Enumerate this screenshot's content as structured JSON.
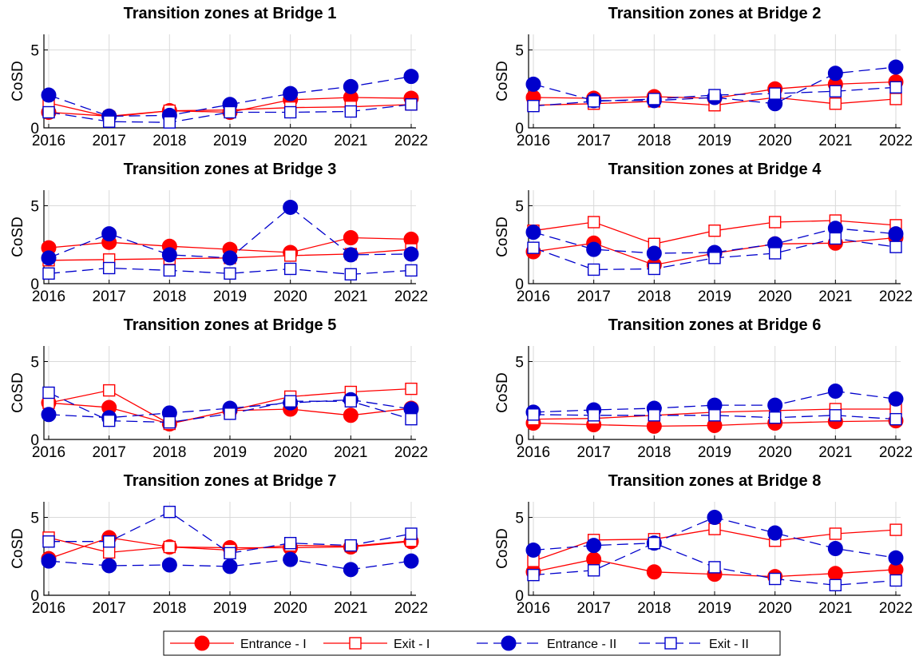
{
  "series_styles": [
    {
      "name": "Entrance - I",
      "color": "#ff0000",
      "marker": "circle",
      "dashed": false
    },
    {
      "name": "Exit - I",
      "color": "#ff0000",
      "marker": "square",
      "dashed": false
    },
    {
      "name": "Entrance - II",
      "color": "#0000cc",
      "marker": "circle",
      "dashed": true
    },
    {
      "name": "Exit - II",
      "color": "#0000cc",
      "marker": "square",
      "dashed": true
    }
  ],
  "chart_data": [
    {
      "type": "line",
      "title": "Transition zones at Bridge 1",
      "ylabel": "CoSD",
      "x": [
        "2016",
        "2017",
        "2018",
        "2019",
        "2020",
        "2021",
        "2022"
      ],
      "ylim": [
        0,
        6
      ],
      "yticks": [
        0,
        5
      ],
      "series": [
        {
          "name": "Entrance - I",
          "values": [
            1.0,
            0.75,
            1.1,
            1.0,
            1.8,
            1.95,
            1.9
          ]
        },
        {
          "name": "Exit - I",
          "values": [
            1.6,
            0.7,
            1.1,
            1.15,
            1.3,
            1.35,
            1.5
          ]
        },
        {
          "name": "Entrance - II",
          "values": [
            2.1,
            0.75,
            0.8,
            1.5,
            2.2,
            2.65,
            3.3
          ]
        },
        {
          "name": "Exit - II",
          "values": [
            1.0,
            0.4,
            0.35,
            1.0,
            1.0,
            1.05,
            1.5
          ]
        }
      ]
    },
    {
      "type": "line",
      "title": "Transition zones at Bridge 2",
      "ylabel": "CoSD",
      "x": [
        "2016",
        "2017",
        "2018",
        "2019",
        "2020",
        "2021",
        "2022"
      ],
      "ylim": [
        0,
        6
      ],
      "yticks": [
        0,
        5
      ],
      "series": [
        {
          "name": "Entrance - I",
          "values": [
            1.95,
            1.9,
            2.0,
            1.9,
            2.5,
            2.8,
            2.95
          ]
        },
        {
          "name": "Exit - I",
          "values": [
            1.45,
            1.55,
            1.7,
            1.45,
            1.95,
            1.55,
            1.85
          ]
        },
        {
          "name": "Entrance - II",
          "values": [
            2.8,
            1.75,
            1.75,
            1.95,
            1.55,
            3.5,
            3.9
          ]
        },
        {
          "name": "Exit - II",
          "values": [
            1.4,
            1.7,
            1.85,
            2.1,
            2.2,
            2.35,
            2.6
          ]
        }
      ]
    },
    {
      "type": "line",
      "title": "Transition zones at Bridge 3",
      "ylabel": "CoSD",
      "x": [
        "2016",
        "2017",
        "2018",
        "2019",
        "2020",
        "2021",
        "2022"
      ],
      "ylim": [
        0,
        6
      ],
      "yticks": [
        0,
        5
      ],
      "series": [
        {
          "name": "Entrance - I",
          "values": [
            2.3,
            2.65,
            2.4,
            2.2,
            2.0,
            2.95,
            2.85
          ]
        },
        {
          "name": "Exit - I",
          "values": [
            1.5,
            1.55,
            1.6,
            1.65,
            1.8,
            1.9,
            2.2
          ]
        },
        {
          "name": "Entrance - II",
          "values": [
            1.65,
            3.2,
            1.85,
            1.65,
            4.9,
            1.85,
            1.9
          ]
        },
        {
          "name": "Exit - II",
          "values": [
            0.65,
            1.0,
            0.85,
            0.65,
            0.95,
            0.6,
            0.85
          ]
        }
      ]
    },
    {
      "type": "line",
      "title": "Transition zones at Bridge 4",
      "ylabel": "CoSD",
      "x": [
        "2016",
        "2017",
        "2018",
        "2019",
        "2020",
        "2021",
        "2022"
      ],
      "ylim": [
        0,
        6
      ],
      "yticks": [
        0,
        5
      ],
      "series": [
        {
          "name": "Entrance - I",
          "values": [
            2.05,
            2.6,
            1.2,
            1.95,
            2.55,
            2.6,
            2.95
          ]
        },
        {
          "name": "Exit - I",
          "values": [
            3.4,
            3.95,
            2.55,
            3.4,
            3.95,
            4.05,
            3.75
          ]
        },
        {
          "name": "Entrance - II",
          "values": [
            3.3,
            2.2,
            1.95,
            2.0,
            2.55,
            3.55,
            3.2
          ]
        },
        {
          "name": "Exit - II",
          "values": [
            2.3,
            0.9,
            0.95,
            1.65,
            1.95,
            2.9,
            2.35
          ]
        }
      ]
    },
    {
      "type": "line",
      "title": "Transition zones at Bridge 5",
      "ylabel": "CoSD",
      "x": [
        "2016",
        "2017",
        "2018",
        "2019",
        "2020",
        "2021",
        "2022"
      ],
      "ylim": [
        0,
        6
      ],
      "yticks": [
        0,
        5
      ],
      "series": [
        {
          "name": "Entrance - I",
          "values": [
            2.35,
            2.05,
            1.0,
            1.85,
            1.95,
            1.55,
            2.0
          ]
        },
        {
          "name": "Exit - I",
          "values": [
            2.35,
            3.15,
            1.0,
            1.85,
            2.75,
            3.05,
            3.25
          ]
        },
        {
          "name": "Entrance - II",
          "values": [
            1.6,
            1.4,
            1.7,
            2.0,
            2.35,
            2.55,
            1.95
          ]
        },
        {
          "name": "Exit - II",
          "values": [
            3.0,
            1.2,
            1.1,
            1.65,
            2.45,
            2.45,
            1.3
          ]
        }
      ]
    },
    {
      "type": "line",
      "title": "Transition zones at Bridge 6",
      "ylabel": "CoSD",
      "x": [
        "2016",
        "2017",
        "2018",
        "2019",
        "2020",
        "2021",
        "2022"
      ],
      "ylim": [
        0,
        6
      ],
      "yticks": [
        0,
        5
      ],
      "series": [
        {
          "name": "Entrance - I",
          "values": [
            1.05,
            0.95,
            0.85,
            0.9,
            1.05,
            1.15,
            1.2
          ]
        },
        {
          "name": "Exit - I",
          "values": [
            1.3,
            1.35,
            1.55,
            1.75,
            1.85,
            1.95,
            1.95
          ]
        },
        {
          "name": "Entrance - II",
          "values": [
            1.75,
            1.9,
            2.0,
            2.2,
            2.2,
            3.1,
            2.6
          ]
        },
        {
          "name": "Exit - II",
          "values": [
            1.6,
            1.55,
            1.55,
            1.55,
            1.4,
            1.55,
            1.3
          ]
        }
      ]
    },
    {
      "type": "line",
      "title": "Transition zones at Bridge 7",
      "ylabel": "CoSD",
      "x": [
        "2016",
        "2017",
        "2018",
        "2019",
        "2020",
        "2021",
        "2022"
      ],
      "ylim": [
        0,
        6
      ],
      "yticks": [
        0,
        5
      ],
      "series": [
        {
          "name": "Entrance - I",
          "values": [
            2.35,
            3.7,
            3.1,
            3.05,
            3.05,
            3.1,
            3.45
          ]
        },
        {
          "name": "Exit - I",
          "values": [
            3.7,
            2.75,
            3.1,
            2.9,
            3.2,
            3.15,
            3.5
          ]
        },
        {
          "name": "Entrance - II",
          "values": [
            2.2,
            1.9,
            1.95,
            1.85,
            2.3,
            1.65,
            2.2
          ]
        },
        {
          "name": "Exit - II",
          "values": [
            3.45,
            3.45,
            5.35,
            2.7,
            3.35,
            3.2,
            3.95
          ]
        }
      ]
    },
    {
      "type": "line",
      "title": "Transition zones at Bridge 8",
      "ylabel": "CoSD",
      "x": [
        "2016",
        "2017",
        "2018",
        "2019",
        "2020",
        "2021",
        "2022"
      ],
      "ylim": [
        0,
        6
      ],
      "yticks": [
        0,
        5
      ],
      "series": [
        {
          "name": "Entrance - I",
          "values": [
            1.5,
            2.3,
            1.5,
            1.35,
            1.2,
            1.4,
            1.65
          ]
        },
        {
          "name": "Exit - I",
          "values": [
            2.2,
            3.55,
            3.6,
            4.25,
            3.5,
            3.95,
            4.2
          ]
        },
        {
          "name": "Entrance - II",
          "values": [
            2.9,
            3.2,
            3.35,
            5.0,
            4.0,
            3.0,
            2.4
          ]
        },
        {
          "name": "Exit - II",
          "values": [
            1.3,
            1.6,
            3.35,
            1.8,
            1.05,
            0.65,
            0.95
          ]
        }
      ]
    }
  ]
}
